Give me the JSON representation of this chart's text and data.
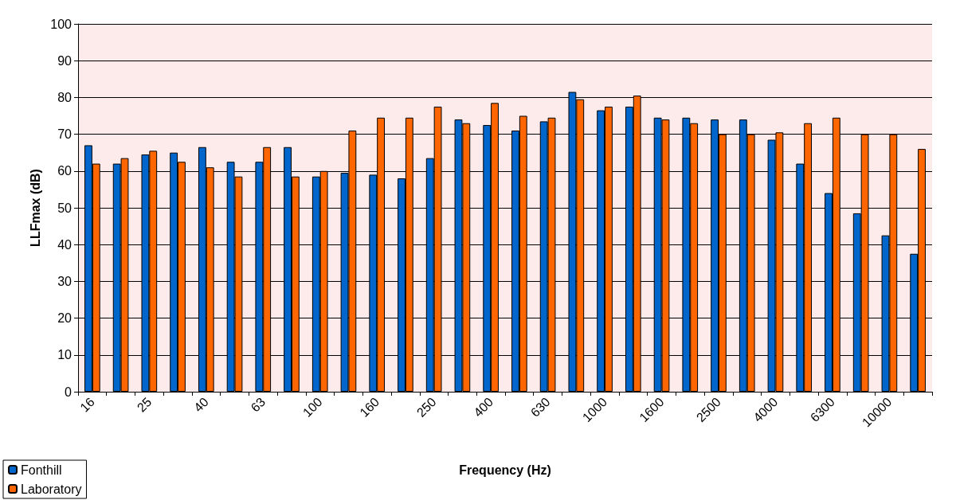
{
  "chart_data": {
    "type": "bar",
    "xlabel": "Frequency (Hz)",
    "ylabel": "LLFmax (dB)",
    "categories": [
      "16",
      null,
      "25",
      null,
      "40",
      null,
      "63",
      null,
      "100",
      null,
      "160",
      null,
      "250",
      null,
      "400",
      null,
      "630",
      null,
      "1000",
      null,
      "1600",
      null,
      "2500",
      null,
      "4000",
      null,
      "6300",
      null,
      "10000",
      null
    ],
    "series": [
      {
        "name": "Fonthill",
        "color": "#0066cc",
        "values": [
          67,
          62,
          64.5,
          65,
          66.5,
          62.5,
          62.5,
          66.5,
          58.5,
          59.5,
          59,
          58,
          63.5,
          74,
          72.5,
          71,
          73.5,
          81.5,
          76.5,
          77.5,
          74.5,
          74.5,
          74,
          74,
          68.5,
          62,
          54,
          48.5,
          42.5,
          37.5
        ]
      },
      {
        "name": "Laboratory",
        "color": "#ff6600",
        "values": [
          62,
          63.5,
          65.5,
          62.5,
          61,
          58.5,
          66.5,
          58.5,
          60,
          71,
          74.5,
          74.5,
          77.5,
          73,
          78.5,
          75,
          74.5,
          79.5,
          77.5,
          80.5,
          74,
          73,
          70,
          70,
          70.5,
          73,
          74.5,
          70,
          70,
          66
        ]
      }
    ],
    "ylim": [
      0,
      100
    ],
    "yticks": [
      0,
      10,
      20,
      30,
      40,
      50,
      60,
      70,
      80,
      90,
      100
    ],
    "grid": "y",
    "legend": "bottom left"
  }
}
